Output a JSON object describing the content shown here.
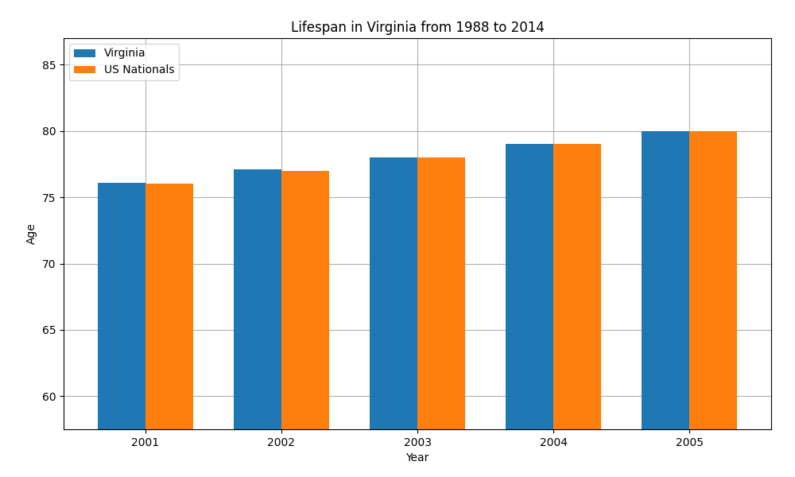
{
  "chart_data": {
    "type": "bar",
    "title": "Lifespan in Virginia from 1988 to 2014",
    "x_label": "Year",
    "y_label": "Age",
    "categories": [
      "2001",
      "2002",
      "2003",
      "2004",
      "2005"
    ],
    "series": [
      {
        "name": "Virginia",
        "values": [
          76.1,
          77.1,
          78.0,
          79.0,
          80.0
        ]
      },
      {
        "name": "US Nationals",
        "values": [
          76.0,
          77.0,
          78.0,
          79.0,
          80.0
        ]
      }
    ],
    "ylim": [
      57.5,
      87
    ],
    "yticks": [
      60,
      65,
      70,
      75,
      80,
      85
    ],
    "grid": true,
    "legend": "upper left"
  }
}
